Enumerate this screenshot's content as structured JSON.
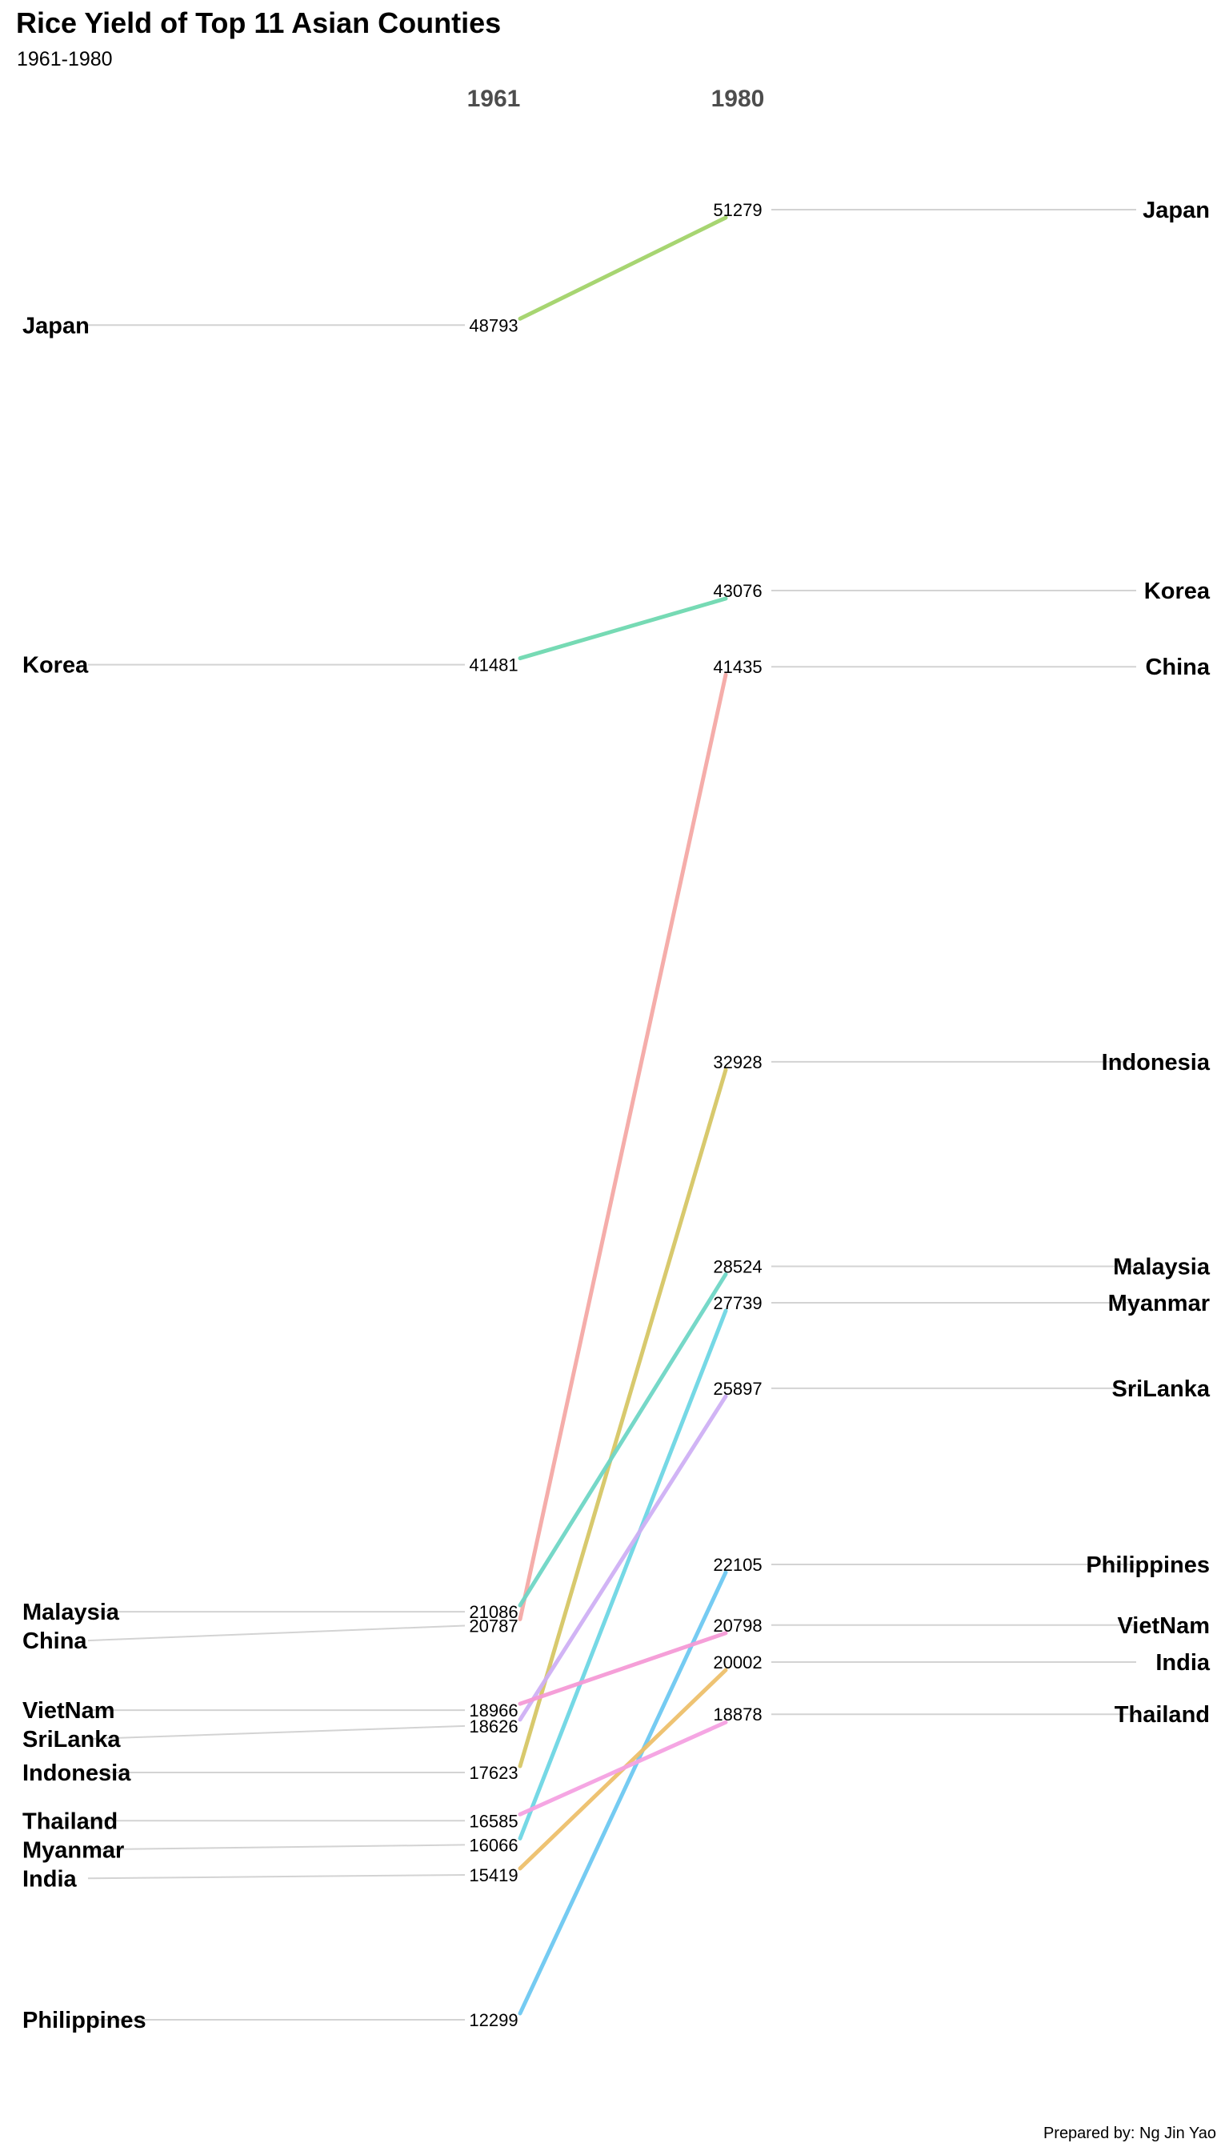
{
  "title": "Rice Yield of Top 11 Asian Counties",
  "subtitle": "1961-1980",
  "caption": "Prepared by: Ng Jin Yao",
  "chart_data": {
    "type": "slope",
    "title": "Rice Yield of Top 11 Asian Counties",
    "subtitle": "1961-1980",
    "x": [
      "1961",
      "1980"
    ],
    "series": [
      {
        "name": "Japan",
        "values": [
          48793,
          51279
        ],
        "color": "#a3d36a"
      },
      {
        "name": "Korea",
        "values": [
          41481,
          43076
        ],
        "color": "#6fd9b0"
      },
      {
        "name": "China",
        "values": [
          20787,
          41435
        ],
        "color": "#f5a9a6"
      },
      {
        "name": "Indonesia",
        "values": [
          17623,
          32928
        ],
        "color": "#d6c766"
      },
      {
        "name": "Malaysia",
        "values": [
          21086,
          28524
        ],
        "color": "#6fd6c6"
      },
      {
        "name": "Myanmar",
        "values": [
          16066,
          27739
        ],
        "color": "#6ed6e4"
      },
      {
        "name": "SriLanka",
        "values": [
          18626,
          25897
        ],
        "color": "#cfb0f5"
      },
      {
        "name": "Philippines",
        "values": [
          12299,
          22105
        ],
        "color": "#6ec9f2"
      },
      {
        "name": "VietNam",
        "values": [
          18966,
          20798
        ],
        "color": "#f59ad6"
      },
      {
        "name": "India",
        "values": [
          15419,
          20002
        ],
        "color": "#eec06c"
      },
      {
        "name": "Thailand",
        "values": [
          16585,
          18878
        ],
        "color": "#f5a2e2"
      }
    ],
    "grid": false,
    "legend": "none"
  }
}
